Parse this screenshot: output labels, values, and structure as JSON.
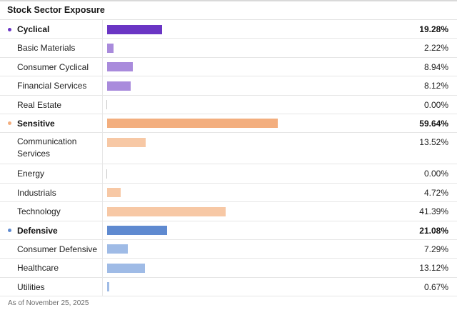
{
  "title": "Stock Sector Exposure",
  "footnote": "As of November 25, 2025",
  "chart_data": {
    "type": "bar",
    "orientation": "horizontal",
    "title": "Stock Sector Exposure",
    "unit": "%",
    "xlim": [
      0,
      100
    ],
    "groups": [
      {
        "name": "Cyclical",
        "value": 19.28,
        "display": "19.28%",
        "color": "#6a35c4",
        "light_color": "#a98bdc",
        "items": [
          {
            "name": "Basic Materials",
            "value": 2.22,
            "display": "2.22%"
          },
          {
            "name": "Consumer Cyclical",
            "value": 8.94,
            "display": "8.94%"
          },
          {
            "name": "Financial Services",
            "value": 8.12,
            "display": "8.12%"
          },
          {
            "name": "Real Estate",
            "value": 0.0,
            "display": "0.00%"
          }
        ]
      },
      {
        "name": "Sensitive",
        "value": 59.64,
        "display": "59.64%",
        "color": "#f3ae7e",
        "light_color": "#f7c8a5",
        "items": [
          {
            "name": "Communication Services",
            "value": 13.52,
            "display": "13.52%"
          },
          {
            "name": "Energy",
            "value": 0.0,
            "display": "0.00%"
          },
          {
            "name": "Industrials",
            "value": 4.72,
            "display": "4.72%"
          },
          {
            "name": "Technology",
            "value": 41.39,
            "display": "41.39%"
          }
        ]
      },
      {
        "name": "Defensive",
        "value": 21.08,
        "display": "21.08%",
        "color": "#5f8ad0",
        "light_color": "#9fbbe6",
        "items": [
          {
            "name": "Consumer Defensive",
            "value": 7.29,
            "display": "7.29%"
          },
          {
            "name": "Healthcare",
            "value": 13.12,
            "display": "13.12%"
          },
          {
            "name": "Utilities",
            "value": 0.67,
            "display": "0.67%"
          }
        ]
      }
    ]
  }
}
